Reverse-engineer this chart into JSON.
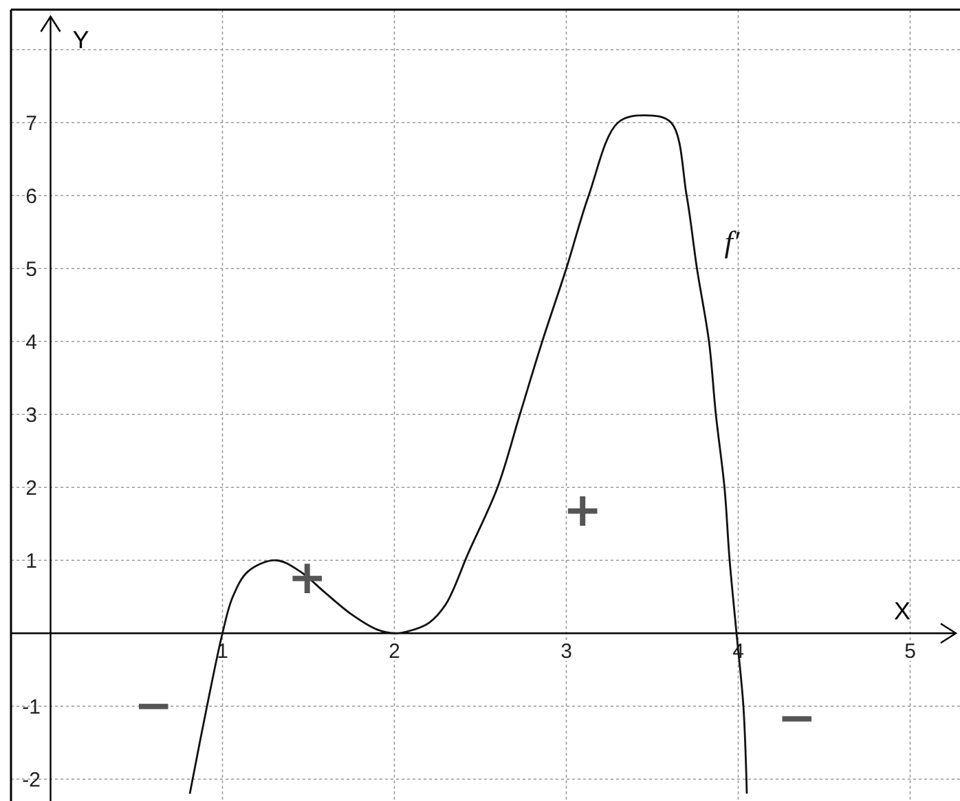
{
  "chart_data": {
    "type": "line",
    "xlabel": "X",
    "ylabel": "Y",
    "xlim": [
      -0.23,
      5.29
    ],
    "ylim": [
      -2.3,
      8.55
    ],
    "xticks": [
      1,
      2,
      3,
      4,
      5
    ],
    "yticks": [
      -2,
      -1,
      1,
      2,
      3,
      4,
      5,
      6,
      7,
      {
        "value": 8,
        "label": null
      }
    ],
    "grid": true,
    "marker": "none",
    "line_style": "solid",
    "series": [
      {
        "name": "f′",
        "color": "#111111",
        "x": [
          0.81,
          0.91,
          1,
          1.06,
          1.15,
          1.31,
          1.45,
          1.6,
          1.75,
          1.9,
          2,
          2.1,
          2.2,
          2.3,
          2.43,
          2.6,
          2.73,
          2.86,
          3,
          3.13,
          3.3,
          3.46,
          3.61,
          3.7,
          3.76,
          3.83,
          3.87,
          3.92,
          3.95,
          3.99,
          4.03,
          4.05
        ],
        "values": [
          -2.2,
          -1,
          0,
          0.5,
          0.85,
          1,
          0.85,
          0.55,
          0.26,
          0.05,
          0,
          0.04,
          0.14,
          0.4,
          1.1,
          2,
          3,
          4,
          5,
          6,
          7,
          7.1,
          7,
          6,
          5,
          4,
          3,
          2,
          1,
          0,
          -1,
          -2.2
        ]
      }
    ],
    "annotations": [
      "+",
      "+",
      "−",
      "−"
    ]
  }
}
